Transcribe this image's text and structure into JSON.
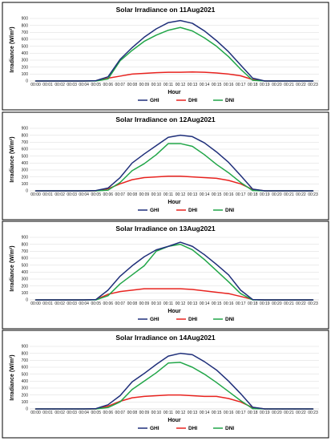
{
  "colors": {
    "GHI": "#1f2f7a",
    "DHI": "#e8231f",
    "DNI": "#21a648"
  },
  "chart_data": [
    {
      "type": "line",
      "title": "Solar Irradiance on 11Aug2021",
      "xlabel": "Hour",
      "ylabel": "Irradiance (W/m²)",
      "ylim": [
        0,
        900
      ],
      "yticks": [
        0,
        100,
        200,
        300,
        400,
        500,
        600,
        700,
        800,
        900
      ],
      "grid": true,
      "legend": "bottom-center",
      "categories": [
        "00:00",
        "00:01",
        "00:02",
        "00:03",
        "00:04",
        "00:05",
        "00:06",
        "00:07",
        "00:08",
        "00:09",
        "00:10",
        "00:11",
        "00:12",
        "00:13",
        "00:14",
        "00:15",
        "00:16",
        "00:17",
        "00:18",
        "00:19",
        "00:20",
        "00:21",
        "00:22",
        "00:23"
      ],
      "series": [
        {
          "name": "GHI",
          "values": [
            0,
            0,
            0,
            0,
            0,
            5,
            60,
            310,
            480,
            630,
            750,
            840,
            870,
            830,
            720,
            580,
            420,
            230,
            40,
            0,
            0,
            0,
            0,
            0
          ]
        },
        {
          "name": "DHI",
          "values": [
            0,
            0,
            0,
            0,
            0,
            5,
            40,
            70,
            100,
            110,
            120,
            125,
            125,
            130,
            125,
            115,
            100,
            75,
            20,
            0,
            0,
            0,
            0,
            0
          ]
        },
        {
          "name": "DNI",
          "values": [
            0,
            0,
            0,
            0,
            0,
            0,
            30,
            290,
            440,
            570,
            660,
            730,
            770,
            720,
            620,
            500,
            350,
            170,
            10,
            0,
            0,
            0,
            0,
            0
          ]
        }
      ]
    },
    {
      "type": "line",
      "title": "Solar Irradiance on 12Aug2021",
      "xlabel": "Hour",
      "ylabel": "Irradiance (W/m²)",
      "ylim": [
        0,
        900
      ],
      "yticks": [
        0,
        100,
        200,
        300,
        400,
        500,
        600,
        700,
        800,
        900
      ],
      "grid": true,
      "legend": "bottom-center",
      "categories": [
        "00:00",
        "00:01",
        "00:02",
        "00:03",
        "00:04",
        "00:05",
        "00:06",
        "00:07",
        "00:08",
        "00:09",
        "00:10",
        "00:11",
        "00:12",
        "00:13",
        "00:14",
        "00:15",
        "00:16",
        "00:17",
        "00:18",
        "00:19",
        "00:20",
        "00:21",
        "00:22",
        "00:23"
      ],
      "series": [
        {
          "name": "GHI",
          "values": [
            0,
            0,
            0,
            0,
            0,
            5,
            40,
            190,
            400,
            530,
            650,
            770,
            800,
            780,
            690,
            560,
            410,
            220,
            25,
            0,
            0,
            0,
            0,
            0
          ]
        },
        {
          "name": "DHI",
          "values": [
            0,
            0,
            0,
            0,
            0,
            0,
            30,
            100,
            160,
            190,
            200,
            210,
            210,
            200,
            190,
            180,
            150,
            100,
            20,
            0,
            0,
            0,
            0,
            0
          ]
        },
        {
          "name": "DNI",
          "values": [
            0,
            0,
            0,
            0,
            0,
            0,
            10,
            120,
            290,
            390,
            520,
            680,
            680,
            640,
            520,
            380,
            260,
            120,
            5,
            0,
            0,
            0,
            0,
            0
          ]
        }
      ]
    },
    {
      "type": "line",
      "title": "Solar Irradiance on 13Aug2021",
      "xlabel": "Hour",
      "ylabel": "Irradiance (W/m²)",
      "ylim": [
        0,
        900
      ],
      "yticks": [
        0,
        100,
        200,
        300,
        400,
        500,
        600,
        700,
        800,
        900
      ],
      "grid": true,
      "legend": "bottom-center",
      "categories": [
        "00:00",
        "00:01",
        "00:02",
        "00:03",
        "00:04",
        "00:05",
        "00:06",
        "00:07",
        "00:08",
        "00:09",
        "00:10",
        "00:11",
        "00:12",
        "00:13",
        "00:14",
        "00:15",
        "00:16",
        "00:17",
        "00:18",
        "00:19",
        "00:20",
        "00:21",
        "00:22",
        "00:23"
      ],
      "series": [
        {
          "name": "GHI",
          "values": [
            0,
            0,
            0,
            0,
            0,
            5,
            140,
            340,
            490,
            620,
            720,
            770,
            830,
            770,
            650,
            510,
            360,
            140,
            5,
            0,
            0,
            0,
            0,
            0
          ]
        },
        {
          "name": "DHI",
          "values": [
            0,
            0,
            0,
            0,
            0,
            5,
            80,
            120,
            140,
            160,
            160,
            160,
            160,
            150,
            130,
            110,
            90,
            50,
            5,
            0,
            0,
            0,
            0,
            0
          ]
        },
        {
          "name": "DNI",
          "values": [
            0,
            0,
            0,
            0,
            0,
            0,
            60,
            230,
            360,
            490,
            700,
            770,
            800,
            720,
            580,
            420,
            260,
            90,
            0,
            0,
            0,
            0,
            0,
            0
          ]
        }
      ]
    },
    {
      "type": "line",
      "title": "Solar Irradiance on 14Aug2021",
      "xlabel": "Hour",
      "ylabel": "Irradiance (W/m²)",
      "ylim": [
        0,
        900
      ],
      "yticks": [
        0,
        100,
        200,
        300,
        400,
        500,
        600,
        700,
        800,
        900
      ],
      "grid": true,
      "legend": "bottom-center",
      "categories": [
        "00:00",
        "00:01",
        "00:02",
        "00:03",
        "00:04",
        "00:05",
        "00:06",
        "00:07",
        "00:08",
        "00:09",
        "00:10",
        "00:11",
        "00:12",
        "00:13",
        "00:14",
        "00:15",
        "00:16",
        "00:17",
        "00:18",
        "00:19",
        "00:20",
        "00:21",
        "00:22",
        "00:23"
      ],
      "series": [
        {
          "name": "GHI",
          "values": [
            0,
            0,
            0,
            0,
            0,
            5,
            60,
            190,
            390,
            510,
            640,
            760,
            800,
            780,
            680,
            560,
            400,
            220,
            25,
            0,
            0,
            0,
            0,
            0
          ]
        },
        {
          "name": "DHI",
          "values": [
            0,
            0,
            0,
            0,
            0,
            0,
            40,
            110,
            160,
            180,
            190,
            200,
            200,
            190,
            180,
            180,
            150,
            100,
            20,
            0,
            0,
            0,
            0,
            0
          ]
        },
        {
          "name": "DNI",
          "values": [
            0,
            0,
            0,
            0,
            0,
            0,
            20,
            100,
            280,
            400,
            520,
            660,
            670,
            600,
            500,
            380,
            250,
            120,
            5,
            0,
            0,
            0,
            0,
            0
          ]
        }
      ]
    }
  ]
}
